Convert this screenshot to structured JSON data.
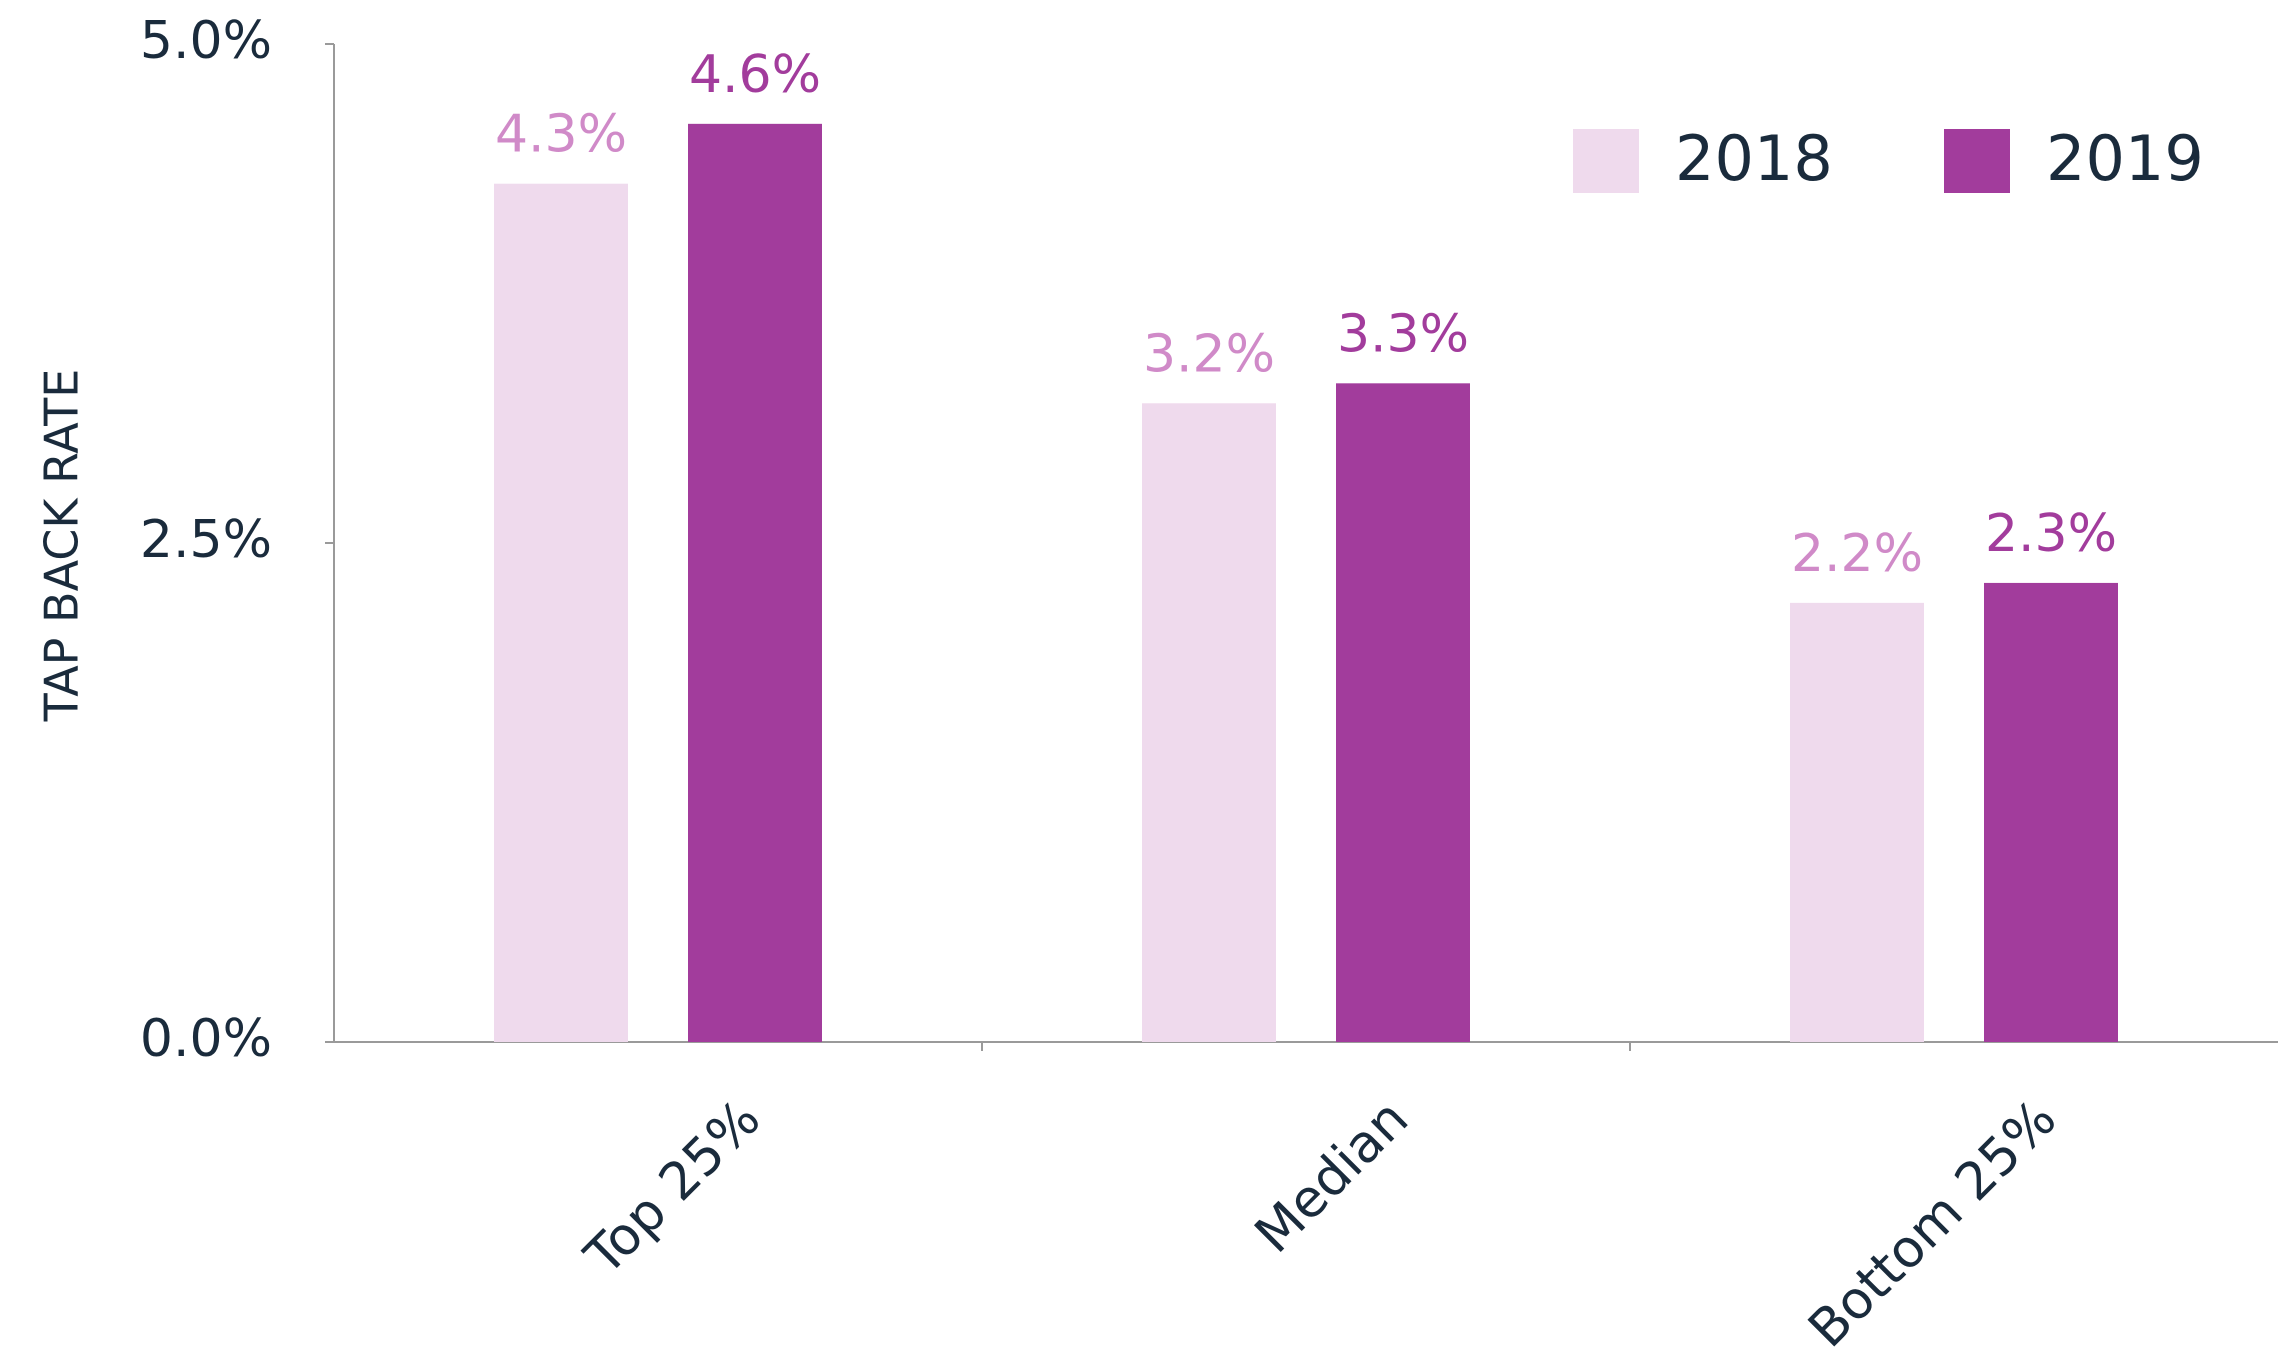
{
  "chart_data": {
    "type": "bar",
    "axis_label_y": "TAP BACK RATE",
    "categories": [
      "Top 25%",
      "Median",
      "Bottom 25%"
    ],
    "series": [
      {
        "name": "2018",
        "color": "#efdaed",
        "label_color": "#d08ac8",
        "values": [
          4.3,
          3.2,
          2.2
        ],
        "value_labels": [
          "4.3%",
          "3.2%",
          "2.2%"
        ]
      },
      {
        "name": "2019",
        "color": "#a23c9c",
        "label_color": "#a23c9c",
        "values": [
          4.6,
          3.3,
          2.3
        ],
        "value_labels": [
          "4.6%",
          "3.3%",
          "2.3%"
        ]
      }
    ],
    "ylim": [
      0,
      5
    ],
    "yticks": [
      {
        "value": 0,
        "label": "0.0%"
      },
      {
        "value": 2.5,
        "label": "2.5%"
      },
      {
        "value": 5,
        "label": "5.0%"
      }
    ],
    "grid": false,
    "legend": "upper right"
  }
}
